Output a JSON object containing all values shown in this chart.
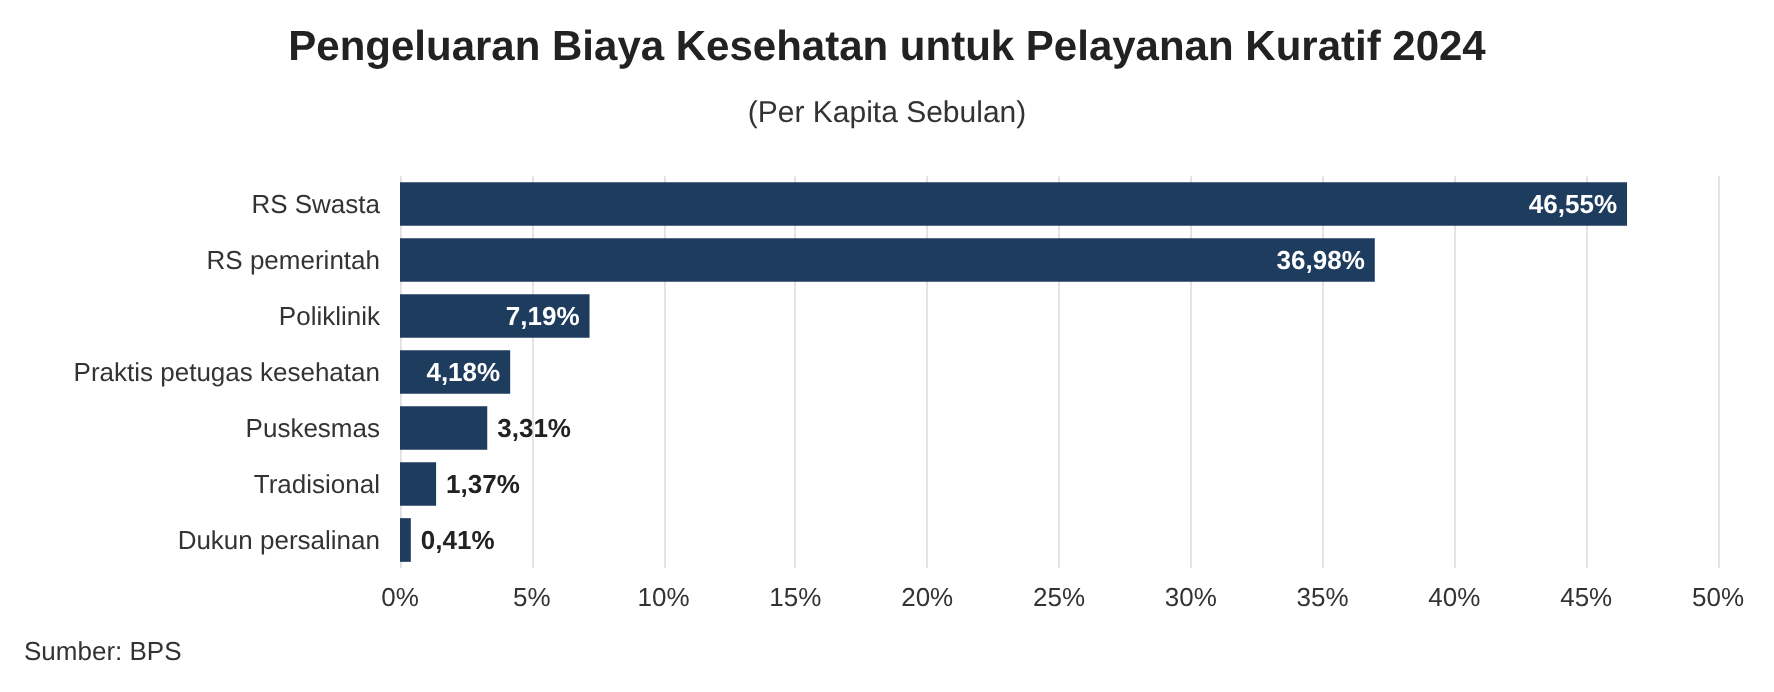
{
  "chart_data": {
    "type": "bar",
    "orientation": "horizontal",
    "title": "Pengeluaran Biaya Kesehatan untuk Pelayanan Kuratif 2024",
    "subtitle": "(Per Kapita Sebulan)",
    "categories": [
      "RS Swasta",
      "RS pemerintah",
      "Poliklinik",
      "Praktis petugas kesehatan",
      "Puskesmas",
      "Tradisional",
      "Dukun persalinan"
    ],
    "values": [
      46.55,
      36.98,
      7.19,
      4.18,
      3.31,
      1.37,
      0.41
    ],
    "value_labels": [
      "46,55%",
      "36,98%",
      "7,19%",
      "4,18%",
      "3,31%",
      "1,37%",
      "0,41%"
    ],
    "color": "#1d3c5e",
    "xlim": [
      0,
      50
    ],
    "xticks": [
      {
        "value": 0,
        "label": "0%"
      },
      {
        "value": 5,
        "label": "5%"
      },
      {
        "value": 10,
        "label": "10%"
      },
      {
        "value": 15,
        "label": "15%"
      },
      {
        "value": 20,
        "label": "20%"
      },
      {
        "value": 25,
        "label": "25%"
      },
      {
        "value": 30,
        "label": "30%"
      },
      {
        "value": 35,
        "label": "35%"
      },
      {
        "value": 40,
        "label": "40%"
      },
      {
        "value": 45,
        "label": "45%"
      },
      {
        "value": 50,
        "label": "50%"
      }
    ],
    "grid": "x",
    "annotations": [
      "Sumber: BPS"
    ]
  }
}
